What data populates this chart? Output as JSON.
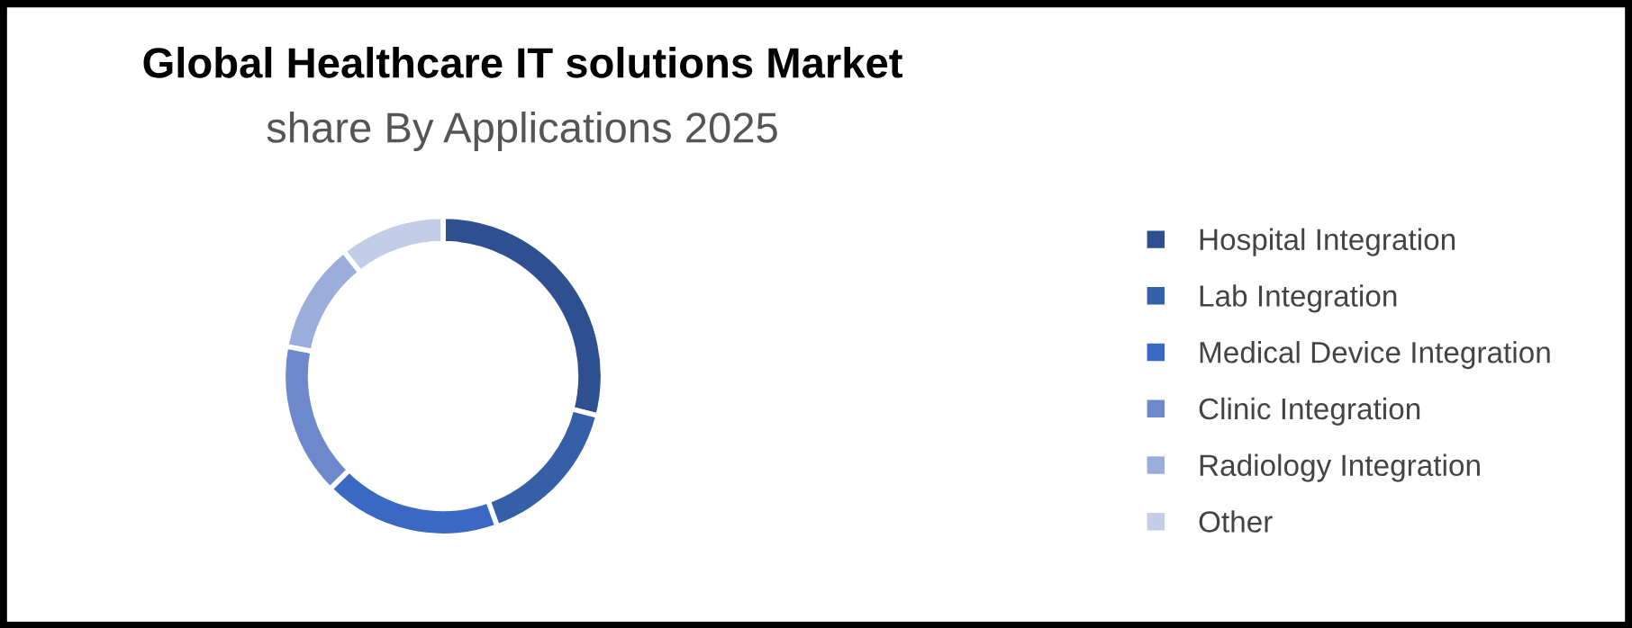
{
  "chart_data": {
    "type": "donut",
    "title": "Global Healthcare IT solutions Market",
    "subtitle": "share By Applications 2025",
    "categories": [
      "Hospital Integration",
      "Lab Integration",
      "Medical Device Integration",
      "Clinic Integration",
      "Radiology Integration",
      "Other"
    ],
    "values": [
      29,
      15.5,
      18,
      15.5,
      11.3,
      10.7
    ],
    "colors": [
      "#2f5090",
      "#3560a8",
      "#3b68c2",
      "#6e89cb",
      "#9badda",
      "#c3cde8"
    ],
    "legend": "right"
  }
}
